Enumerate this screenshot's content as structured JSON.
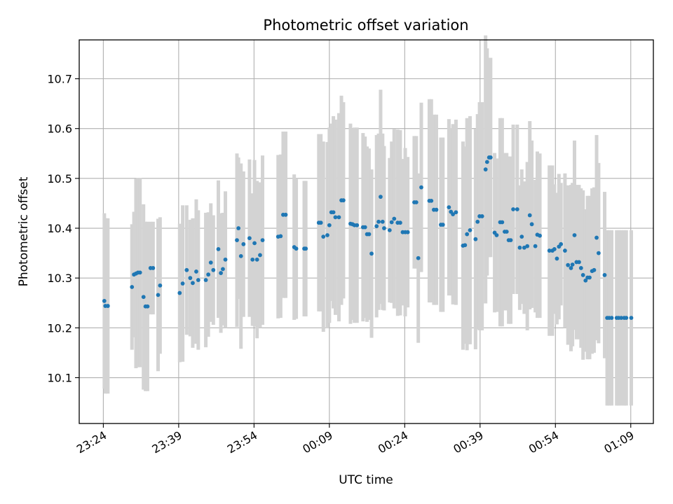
{
  "chart_data": {
    "type": "scatter",
    "title": "Photometric offset variation",
    "xlabel": "UTC time",
    "ylabel": "Photometric offset",
    "x_unit": "minutes",
    "x_ticks": [
      {
        "value": 0,
        "label": "23:24"
      },
      {
        "value": 15,
        "label": "23:39"
      },
      {
        "value": 30,
        "label": "23:54"
      },
      {
        "value": 45,
        "label": "00:09"
      },
      {
        "value": 60,
        "label": "00:24"
      },
      {
        "value": 75,
        "label": "00:39"
      },
      {
        "value": 90,
        "label": "00:54"
      },
      {
        "value": 105,
        "label": "01:09"
      }
    ],
    "y_ticks": [
      {
        "value": 10.1,
        "label": "10.1"
      },
      {
        "value": 10.2,
        "label": "10.2"
      },
      {
        "value": 10.3,
        "label": "10.3"
      },
      {
        "value": 10.4,
        "label": "10.4"
      },
      {
        "value": 10.5,
        "label": "10.5"
      },
      {
        "value": 10.6,
        "label": "10.6"
      },
      {
        "value": 10.7,
        "label": "10.7"
      }
    ],
    "xlim": [
      -4.8,
      109.5
    ],
    "ylim": [
      10.008,
      10.778
    ],
    "grid": true,
    "colors": {
      "points": "#1f77b4",
      "error_bars": "#d3d3d3",
      "grid": "#b0b0b0"
    },
    "series": [
      {
        "x": [
          0.2,
          0.4,
          0.9,
          5.7,
          6.1,
          6.5,
          6.9,
          7.3,
          8.0,
          8.4,
          8.8,
          9.4,
          9.9,
          10.9,
          11.3,
          15.2,
          15.8,
          16.6,
          17.3,
          17.8,
          18.5,
          18.9,
          20.4,
          20.9,
          21.4,
          21.9,
          22.9,
          23.4,
          23.8,
          24.3,
          26.6,
          26.9,
          27.4,
          27.9,
          29.1,
          29.7,
          30.1,
          30.6,
          31.2,
          31.7,
          34.8,
          35.3,
          35.8,
          36.3,
          38.0,
          38.4,
          40.0,
          40.3,
          42.9,
          43.3,
          43.8,
          44.6,
          45.0,
          45.4,
          45.8,
          46.2,
          46.9,
          47.4,
          47.8,
          49.2,
          49.6,
          50.0,
          50.5,
          51.7,
          52.1,
          52.5,
          52.9,
          53.4,
          54.4,
          54.8,
          55.2,
          55.6,
          55.9,
          57.0,
          57.4,
          57.9,
          58.6,
          59.1,
          59.6,
          60.1,
          60.6,
          61.9,
          62.3,
          62.7,
          63.3,
          64.9,
          65.3,
          65.8,
          66.3,
          67.2,
          67.6,
          68.8,
          69.2,
          69.6,
          70.2,
          71.6,
          72.0,
          72.4,
          73.0,
          74.1,
          74.5,
          74.9,
          75.4,
          76.1,
          76.4,
          76.8,
          77.1,
          77.9,
          78.3,
          79.0,
          79.4,
          79.9,
          80.3,
          80.7,
          81.1,
          81.6,
          82.4,
          82.9,
          83.3,
          83.8,
          84.4,
          84.9,
          85.3,
          86.0,
          86.4,
          86.9,
          88.8,
          89.4,
          89.8,
          90.3,
          90.7,
          91.1,
          91.9,
          92.5,
          93.1,
          93.4,
          93.8,
          94.2,
          94.7,
          95.1,
          95.5,
          96.0,
          96.4,
          96.8,
          97.3,
          97.7,
          98.2,
          98.6,
          99.8,
          100.3,
          100.7,
          101.2,
          102.2,
          102.6,
          103.1,
          103.7,
          104.1,
          105.1
        ],
        "y": [
          10.254,
          10.244,
          10.244,
          10.282,
          10.307,
          10.309,
          10.311,
          10.311,
          10.262,
          10.243,
          10.243,
          10.32,
          10.32,
          10.266,
          10.285,
          10.27,
          10.289,
          10.316,
          10.3,
          10.29,
          10.313,
          10.296,
          10.296,
          10.307,
          10.331,
          10.316,
          10.358,
          10.31,
          10.318,
          10.337,
          10.376,
          10.4,
          10.344,
          10.368,
          10.38,
          10.337,
          10.37,
          10.337,
          10.346,
          10.376,
          10.383,
          10.384,
          10.427,
          10.427,
          10.362,
          10.359,
          10.359,
          10.359,
          10.411,
          10.411,
          10.383,
          10.386,
          10.406,
          10.432,
          10.432,
          10.422,
          10.422,
          10.456,
          10.456,
          10.409,
          10.408,
          10.406,
          10.406,
          10.402,
          10.402,
          10.388,
          10.388,
          10.349,
          10.404,
          10.413,
          10.463,
          10.413,
          10.4,
          10.396,
          10.412,
          10.419,
          10.411,
          10.411,
          10.392,
          10.392,
          10.392,
          10.452,
          10.452,
          10.34,
          10.482,
          10.455,
          10.455,
          10.437,
          10.437,
          10.407,
          10.407,
          10.442,
          10.433,
          10.428,
          10.432,
          10.365,
          10.366,
          10.388,
          10.396,
          10.378,
          10.413,
          10.424,
          10.424,
          10.518,
          10.533,
          10.542,
          10.542,
          10.391,
          10.386,
          10.412,
          10.412,
          10.393,
          10.393,
          10.376,
          10.376,
          10.438,
          10.438,
          10.361,
          10.383,
          10.361,
          10.364,
          10.426,
          10.408,
          10.364,
          10.387,
          10.385,
          10.355,
          10.355,
          10.358,
          10.339,
          10.363,
          10.368,
          10.355,
          10.326,
          10.32,
          10.327,
          10.386,
          10.332,
          10.332,
          10.32,
          10.306,
          10.295,
          10.301,
          10.301,
          10.314,
          10.316,
          10.381,
          10.35,
          10.306,
          10.22,
          10.22,
          10.22,
          10.22,
          10.22,
          10.22,
          10.22,
          10.22,
          10.22
        ],
        "err": [
          0.176,
          0.176,
          0.176,
          0.126,
          0.126,
          0.19,
          0.19,
          0.19,
          0.186,
          0.17,
          0.17,
          0.093,
          0.093,
          0.153,
          0.137,
          0.139,
          0.157,
          0.13,
          0.117,
          0.13,
          0.145,
          0.14,
          0.135,
          0.125,
          0.119,
          0.11,
          0.138,
          0.12,
          0.113,
          0.137,
          0.174,
          0.142,
          0.186,
          0.146,
          0.158,
          0.133,
          0.167,
          0.158,
          0.146,
          0.17,
          0.164,
          0.164,
          0.167,
          0.167,
          0.146,
          0.141,
          0.136,
          0.136,
          0.178,
          0.178,
          0.191,
          0.187,
          0.196,
          0.178,
          0.193,
          0.196,
          0.209,
          0.21,
          0.197,
          0.201,
          0.192,
          0.196,
          0.196,
          0.189,
          0.182,
          0.176,
          0.172,
          0.169,
          0.183,
          0.177,
          0.215,
          0.177,
          0.165,
          0.145,
          0.162,
          0.18,
          0.187,
          0.186,
          0.147,
          0.169,
          0.151,
          0.133,
          0.133,
          0.17,
          0.17,
          0.204,
          0.204,
          0.191,
          0.191,
          0.175,
          0.175,
          0.177,
          0.168,
          0.181,
          0.186,
          0.209,
          0.198,
          0.233,
          0.229,
          0.221,
          0.216,
          0.229,
          0.229,
          0.269,
          0.228,
          0.2,
          0.2,
          0.16,
          0.154,
          0.209,
          0.209,
          0.158,
          0.158,
          0.168,
          0.168,
          0.17,
          0.17,
          0.125,
          0.135,
          0.133,
          0.169,
          0.189,
          0.168,
          0.133,
          0.167,
          0.165,
          0.171,
          0.171,
          0.13,
          0.132,
          0.146,
          0.123,
          0.155,
          0.16,
          0.167,
          0.164,
          0.19,
          0.155,
          0.155,
          0.16,
          0.17,
          0.143,
          0.164,
          0.164,
          0.166,
          0.166,
          0.206,
          0.181,
          0.167,
          0.176,
          0.176,
          0.176,
          0.176,
          0.176,
          0.176,
          0.176,
          0.176,
          0.176
        ]
      }
    ]
  }
}
